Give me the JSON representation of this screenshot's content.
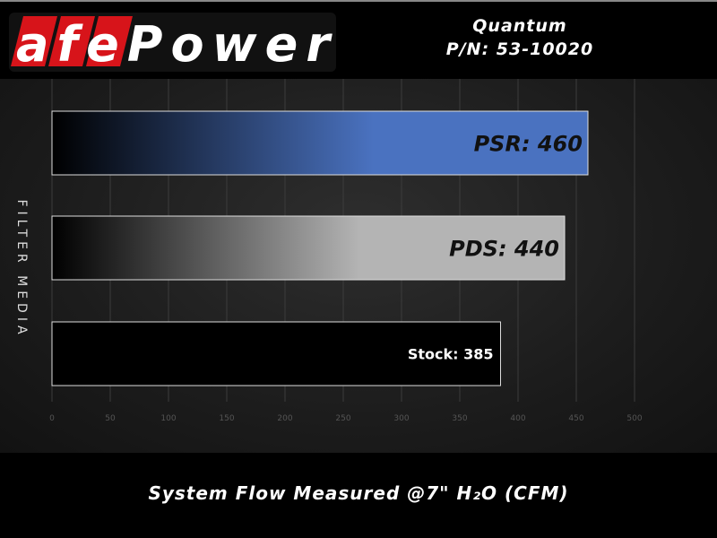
{
  "header": {
    "logo_text": "aFePower",
    "product_name": "Quantum",
    "part_number": "P/N: 53-10020"
  },
  "colors": {
    "psr": "#4a72c0",
    "pds": "#b4b4b4",
    "stock": "#000000",
    "logo_red": "#d7141a"
  },
  "chart_data": {
    "type": "bar",
    "orientation": "horizontal",
    "categories": [
      "PSR",
      "PDS",
      "Stock"
    ],
    "values": [
      460,
      440,
      385
    ],
    "data_labels": [
      "PSR: 460",
      "PDS: 440",
      "Stock: 385"
    ],
    "xlabel": "System Flow Measured @7\" H₂O (CFM)",
    "ylabel": "FILTER MEDIA",
    "xlim": [
      0,
      500
    ],
    "xticks": [
      0,
      50,
      100,
      150,
      200,
      250,
      300,
      350,
      400,
      450,
      500
    ],
    "grid": "vertical"
  }
}
